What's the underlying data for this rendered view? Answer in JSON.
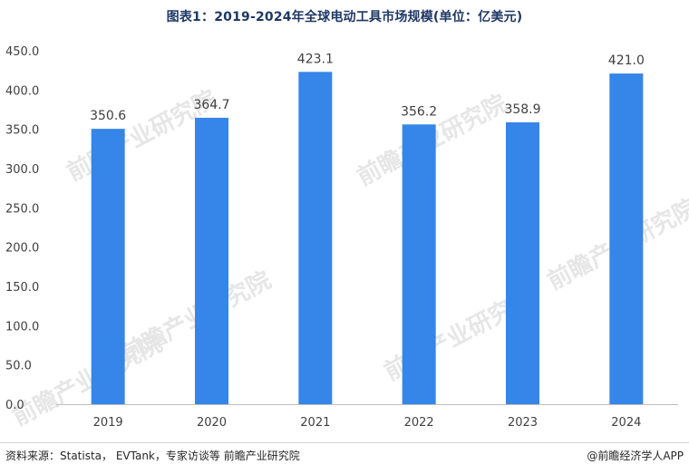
{
  "title": "图表1：2019-2024年全球电动工具市场规模(单位：亿美元)",
  "watermark": "前瞻产业研究院",
  "footer": {
    "source": "资料来源：Statista， EVTank，专家访谈等 前瞻产业研究院",
    "brand": "@前瞻经济学人APP"
  },
  "colors": {
    "bar": "#3685E8",
    "axis": "#bfbfbf",
    "text": "#404040"
  },
  "chart_data": {
    "type": "bar",
    "categories": [
      "2019",
      "2020",
      "2021",
      "2022",
      "2023",
      "2024"
    ],
    "values": [
      350.6,
      364.7,
      423.1,
      356.2,
      358.9,
      421.0
    ],
    "data_labels": [
      "350.6",
      "364.7",
      "423.1",
      "356.2",
      "358.9",
      "421.0"
    ],
    "y_ticks": [
      "0.0",
      "50.0",
      "100.0",
      "150.0",
      "200.0",
      "250.0",
      "300.0",
      "350.0",
      "400.0",
      "450.0"
    ],
    "ylim": [
      0,
      450
    ],
    "grid": false,
    "legend": "none"
  }
}
